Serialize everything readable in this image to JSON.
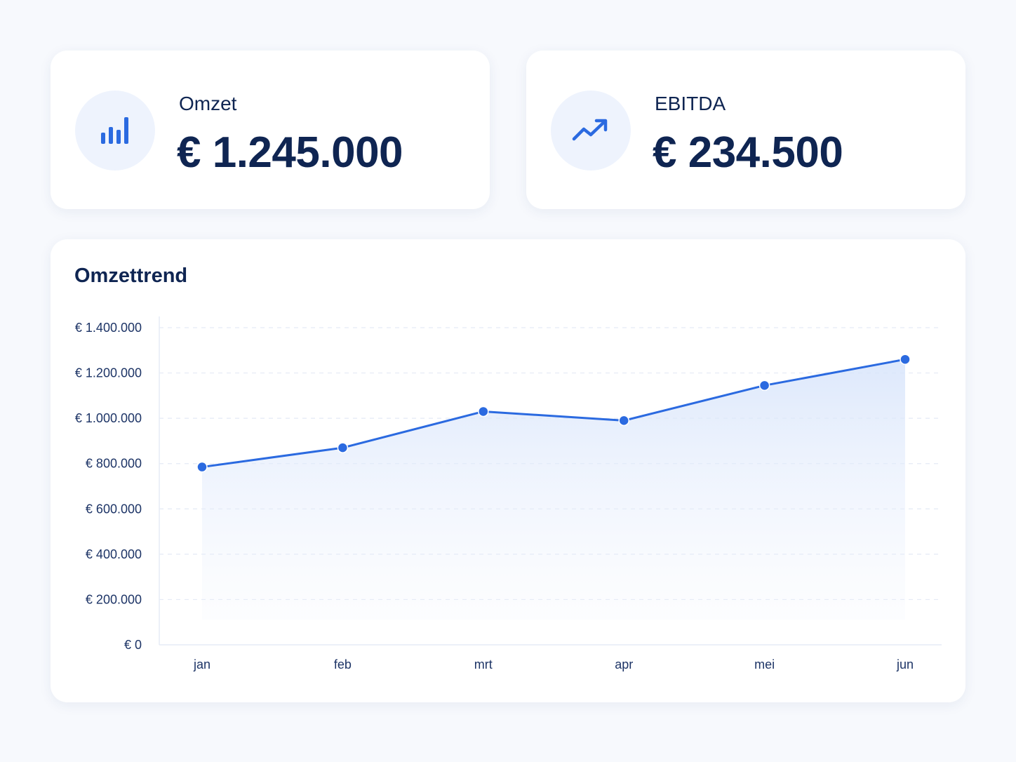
{
  "kpis": {
    "omzet": {
      "label": "Omzet",
      "value": "€ 1.245.000",
      "icon": "bar-chart-icon"
    },
    "ebitda": {
      "label": "EBITDA",
      "value": "€ 234.500",
      "icon": "trending-up-icon"
    }
  },
  "colors": {
    "accent": "#2b6ae0",
    "text": "#0f2552",
    "icon_bg": "#eef3fd"
  },
  "chart_data": {
    "type": "area",
    "title": "Omzettrend",
    "categories": [
      "jan",
      "feb",
      "mrt",
      "apr",
      "mei",
      "jun"
    ],
    "values": [
      785000,
      870000,
      1030000,
      990000,
      1145000,
      1260000
    ],
    "ylim": [
      0,
      1400000
    ],
    "yticks": [
      0,
      200000,
      400000,
      600000,
      800000,
      1000000,
      1200000,
      1400000
    ],
    "ytick_labels": [
      "€ 0",
      "€ 200.000",
      "€ 400.000",
      "€ 600.000",
      "€ 800.000",
      "€ 1.000.000",
      "€ 1.200.000",
      "€ 1.400.000"
    ],
    "grid": true,
    "legend": "none"
  }
}
